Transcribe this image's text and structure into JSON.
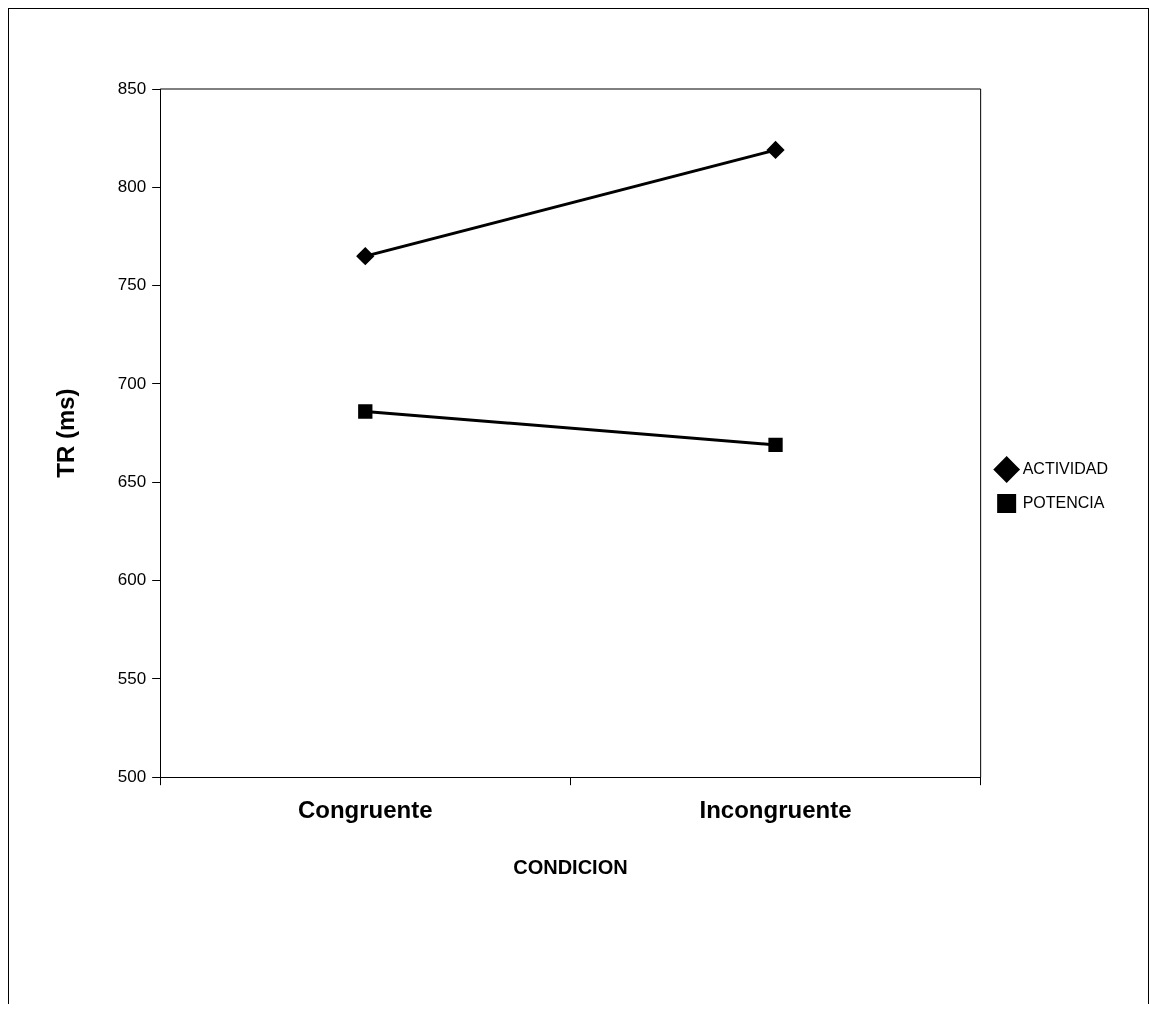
{
  "chart_data": {
    "type": "line",
    "xlabel": "CONDICION",
    "ylabel": "TR (ms)",
    "categories": [
      "Congruente",
      "Incongruente"
    ],
    "series": [
      {
        "name": "ACTIVIDAD",
        "color": "#000000",
        "values": [
          765,
          819
        ],
        "marker": "diamond"
      },
      {
        "name": "POTENCIA",
        "color": "#000000",
        "values": [
          686,
          669
        ],
        "marker": "square"
      }
    ],
    "ylim": [
      500,
      850
    ],
    "yticks": [
      500,
      550,
      600,
      650,
      700,
      750,
      800,
      850
    ],
    "grid": false,
    "legend": "right",
    "line_style": "solid"
  }
}
